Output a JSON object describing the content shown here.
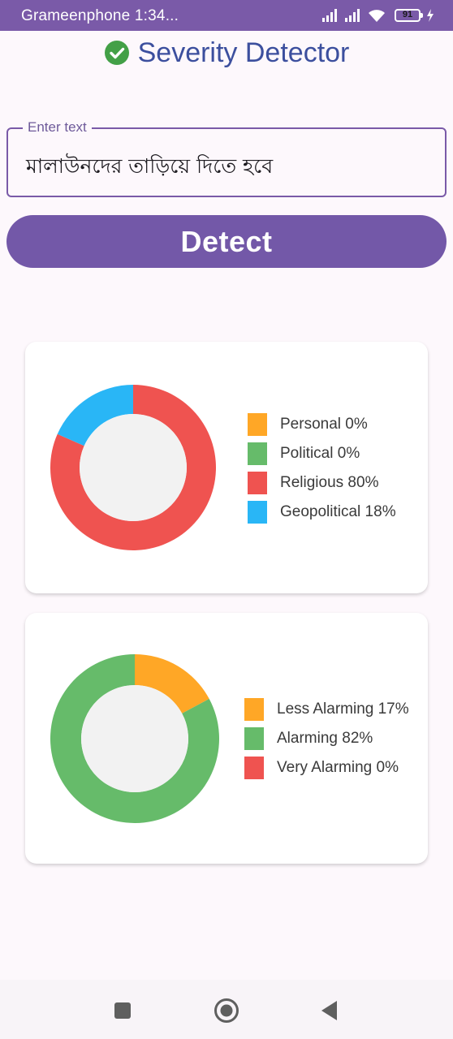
{
  "status_bar": {
    "carrier_time": "Grameenphone  1:34...",
    "battery_level": "91",
    "icons": [
      "signal-icon",
      "signal-icon",
      "wifi-icon",
      "battery-icon",
      "charging-icon"
    ]
  },
  "app": {
    "title": "Severity Detector",
    "title_icon": "check-circle-icon",
    "accent_color": "#7358a8",
    "title_color": "#3c4f9e"
  },
  "input": {
    "label": "Enter text",
    "value": "মালাউনদের তাড়িয়ে দিতে হবে"
  },
  "detect_button": {
    "label": "Detect"
  },
  "category_chart": {
    "legend": [
      {
        "label": "Personal 0%",
        "color": "#ffa726"
      },
      {
        "label": "Political 0%",
        "color": "#66bb6a"
      },
      {
        "label": "Religious 80%",
        "color": "#ef5350"
      },
      {
        "label": "Geopolitical 18%",
        "color": "#29b6f6"
      }
    ],
    "slices": [
      {
        "name": "Personal",
        "value": 0,
        "color": "#ffa726"
      },
      {
        "name": "Political",
        "value": 0,
        "color": "#66bb6a"
      },
      {
        "name": "Religious",
        "value": 80,
        "color": "#ef5350"
      },
      {
        "name": "Geopolitical",
        "value": 18,
        "color": "#29b6f6"
      }
    ]
  },
  "severity_chart": {
    "legend": [
      {
        "label": "Less Alarming 17%",
        "color": "#ffa726"
      },
      {
        "label": "Alarming 82%",
        "color": "#66bb6a"
      },
      {
        "label": "Very Alarming 0%",
        "color": "#ef5350"
      }
    ],
    "slices": [
      {
        "name": "Less Alarming",
        "value": 17,
        "color": "#ffa726"
      },
      {
        "name": "Alarming",
        "value": 82,
        "color": "#66bb6a"
      },
      {
        "name": "Very Alarming",
        "value": 0,
        "color": "#ef5350"
      }
    ]
  },
  "nav_bar": {
    "buttons": [
      "recent-apps-icon",
      "home-icon",
      "back-icon"
    ]
  }
}
